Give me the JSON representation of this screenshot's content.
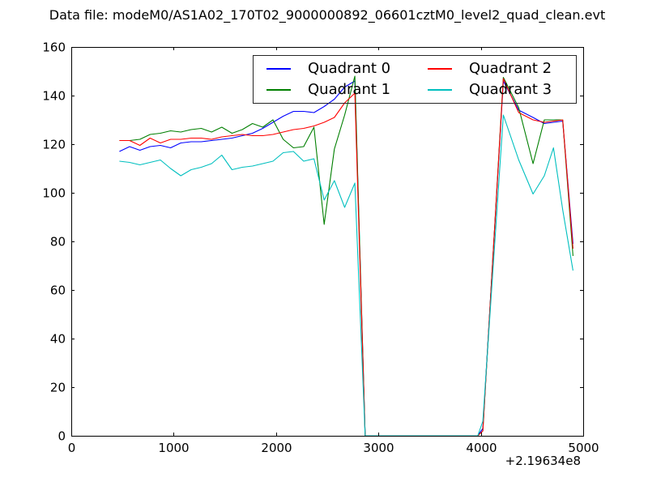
{
  "figure": {
    "background": "#ffffff",
    "frame_color": "#000000"
  },
  "chart": {
    "title": "Data file: modeM0/AS1A02_170T02_9000000892_06601cztM0_level2_quad_clean.evt",
    "x_offset_label": "+2.19634e8"
  },
  "chart_data": {
    "type": "line",
    "title": "Data file: modeM0/AS1A02_170T02_9000000892_06601cztM0_level2_quad_clean.evt",
    "xlabel": "",
    "ylabel": "",
    "x_axis_offset": 219634000,
    "x_offset_label": "+2.19634e8",
    "xlim": [
      0,
      5000
    ],
    "ylim": [
      0,
      160
    ],
    "xticks": [
      0,
      1000,
      2000,
      3000,
      4000,
      5000
    ],
    "yticks": [
      0,
      20,
      40,
      60,
      80,
      100,
      120,
      140,
      160
    ],
    "grid": false,
    "legend_position": "upper center",
    "legend_columns": 2,
    "x": [
      470,
      570,
      670,
      770,
      870,
      970,
      1070,
      1170,
      1270,
      1370,
      1470,
      1570,
      1670,
      1770,
      1870,
      1970,
      2070,
      2170,
      2270,
      2370,
      2470,
      2570,
      2670,
      2770,
      2870,
      3970,
      4020,
      4220,
      4370,
      4510,
      4620,
      4710,
      4800,
      4900
    ],
    "series": [
      {
        "name": "Quadrant 0",
        "color": "#0000ff",
        "values": [
          117,
          119,
          117.5,
          119,
          119.5,
          118.5,
          120.5,
          121,
          121,
          121.5,
          122,
          122.5,
          123.5,
          124.5,
          126.5,
          129,
          131.5,
          133.5,
          133.5,
          133,
          135.5,
          138.5,
          143.5,
          146,
          0,
          0,
          3,
          146,
          134,
          131,
          128.5,
          129,
          129.5,
          79
        ]
      },
      {
        "name": "Quadrant 1",
        "color": "#007f00",
        "values": [
          121.5,
          121.5,
          122,
          124,
          124.5,
          125.5,
          125,
          126,
          126.5,
          125,
          127,
          124.5,
          126,
          128.5,
          127,
          130,
          122,
          118.5,
          119,
          127,
          87,
          118,
          132,
          148,
          0,
          0,
          2,
          147.5,
          135,
          112,
          130,
          130,
          130,
          74
        ]
      },
      {
        "name": "Quadrant 2",
        "color": "#ff0000",
        "values": [
          121.5,
          121.5,
          119.5,
          122.5,
          120.5,
          122,
          122,
          122.5,
          122.5,
          122,
          123,
          123.5,
          124,
          123.5,
          123.5,
          124,
          125,
          126,
          126.5,
          127.5,
          129,
          131,
          137,
          141,
          0,
          0,
          2,
          147,
          133,
          130,
          129,
          129.5,
          130,
          77
        ]
      },
      {
        "name": "Quadrant 3",
        "color": "#00bfbf",
        "values": [
          113,
          112.5,
          111.5,
          112.5,
          113.5,
          110,
          107,
          109.5,
          110.5,
          112,
          115.5,
          109.5,
          110.5,
          111,
          112,
          113,
          116.5,
          117,
          113,
          114,
          97,
          105,
          94,
          104,
          0,
          0,
          6,
          132,
          113.5,
          99.5,
          107,
          118.5,
          93,
          68
        ]
      }
    ]
  }
}
